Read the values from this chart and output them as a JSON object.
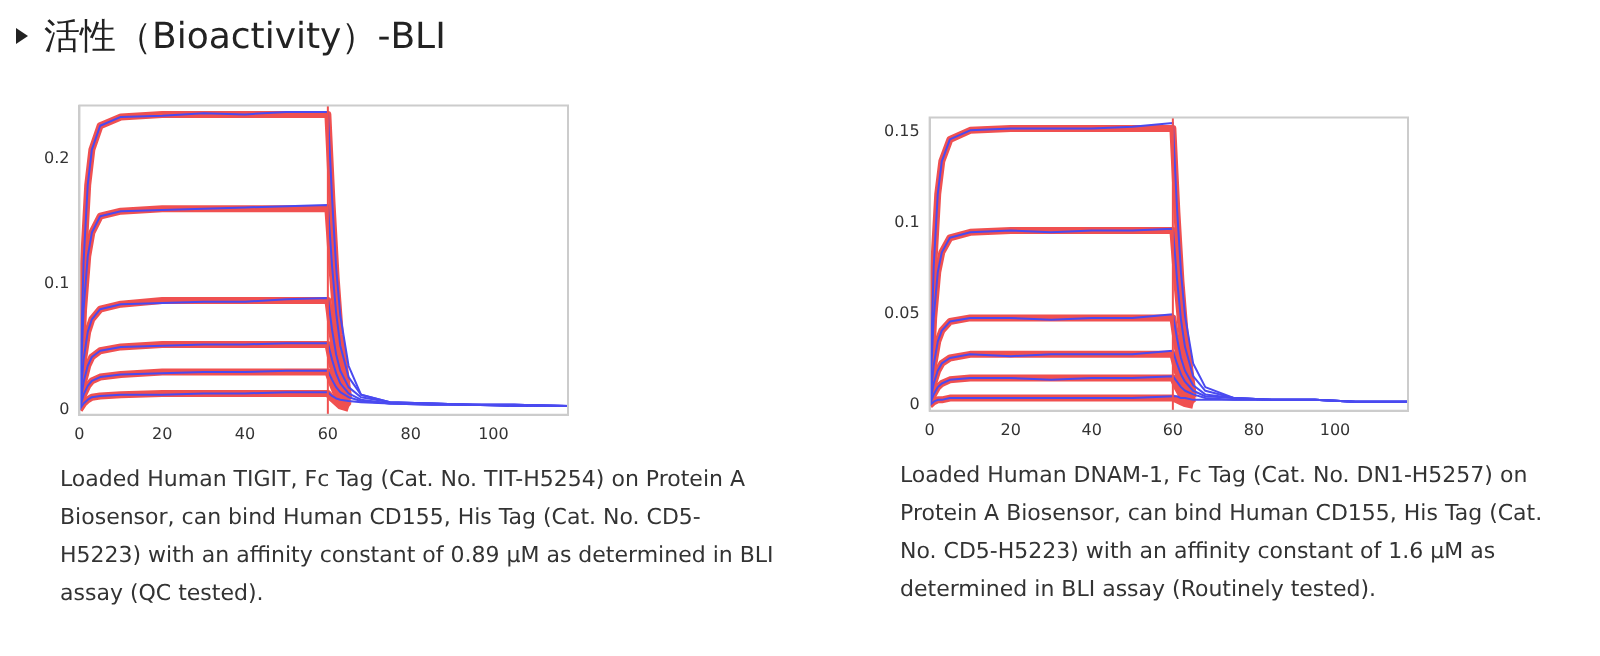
{
  "chart_data": [
    {
      "type": "line",
      "title": "活性（Bioactivity）-BLI",
      "xlim": [
        0,
        118
      ],
      "xticks": [
        0,
        20,
        40,
        60,
        80,
        100
      ],
      "ylim": [
        -0.004,
        0.242
      ],
      "yticks": [
        0,
        0.1,
        0.2
      ],
      "grid": false,
      "legend": false,
      "marker": "none",
      "line_style": "solid",
      "ref_lines": [
        {
          "axis": "x",
          "value": 60,
          "color": "#f05050"
        }
      ],
      "annotations": [
        "Loaded Human TIGIT, Fc Tag (Cat. No. TIT-H5254) on Protein A Biosensor, can bind Human CD155, His Tag (Cat. No. CD5-H5223) with an affinity constant of 0.89 μM as determined in BLI assay (QC tested)."
      ],
      "series": [
        {
          "color": "#4a4af0",
          "x": [
            0,
            1,
            2,
            3,
            5,
            10,
            20,
            30,
            40,
            50,
            60,
            61,
            62,
            63,
            65,
            68,
            75,
            85,
            95,
            105,
            118
          ],
          "values": [
            0,
            0.118,
            0.179,
            0.207,
            0.226,
            0.233,
            0.234,
            0.236,
            0.235,
            0.237,
            0.237,
            0.169,
            0.113,
            0.075,
            0.035,
            0.012,
            0.006,
            0.005,
            0.004,
            0.004,
            0.003
          ]
        },
        {
          "color": "#4a4af0",
          "x": [
            0,
            1,
            2,
            3,
            5,
            10,
            20,
            30,
            40,
            50,
            60,
            61,
            62,
            63,
            65,
            68,
            75,
            85,
            95,
            105,
            118
          ],
          "values": [
            0,
            0.08,
            0.122,
            0.141,
            0.154,
            0.158,
            0.159,
            0.16,
            0.161,
            0.162,
            0.163,
            0.115,
            0.077,
            0.051,
            0.026,
            0.012,
            0.006,
            0.005,
            0.004,
            0.004,
            0.003
          ]
        },
        {
          "color": "#4a4af0",
          "x": [
            0,
            1,
            2,
            3,
            5,
            10,
            20,
            30,
            40,
            50,
            60,
            61,
            62,
            63,
            65,
            68,
            75,
            85,
            95,
            105,
            118
          ],
          "values": [
            0,
            0.04,
            0.062,
            0.072,
            0.08,
            0.084,
            0.085,
            0.086,
            0.086,
            0.088,
            0.089,
            0.064,
            0.044,
            0.031,
            0.018,
            0.01,
            0.006,
            0.005,
            0.004,
            0.004,
            0.003
          ]
        },
        {
          "color": "#4a4af0",
          "x": [
            0,
            1,
            2,
            3,
            5,
            10,
            20,
            30,
            40,
            50,
            60,
            61,
            62,
            63,
            65,
            68,
            75,
            85,
            95,
            105,
            118
          ],
          "values": [
            0,
            0.022,
            0.035,
            0.042,
            0.047,
            0.05,
            0.051,
            0.052,
            0.052,
            0.053,
            0.053,
            0.04,
            0.029,
            0.021,
            0.013,
            0.008,
            0.005,
            0.005,
            0.004,
            0.004,
            0.003
          ]
        },
        {
          "color": "#4a4af0",
          "x": [
            0,
            1,
            2,
            3,
            5,
            10,
            20,
            30,
            40,
            50,
            60,
            61,
            62,
            63,
            65,
            68,
            75,
            85,
            95,
            105,
            118
          ],
          "values": [
            0,
            0.012,
            0.019,
            0.023,
            0.026,
            0.028,
            0.029,
            0.03,
            0.03,
            0.031,
            0.031,
            0.024,
            0.018,
            0.014,
            0.01,
            0.007,
            0.005,
            0.004,
            0.004,
            0.003,
            0.003
          ]
        },
        {
          "color": "#4a4af0",
          "x": [
            0,
            1,
            2,
            3,
            5,
            10,
            20,
            30,
            40,
            50,
            60,
            61,
            62,
            63,
            65,
            68,
            75,
            85,
            95,
            105,
            118
          ],
          "values": [
            0,
            0.005,
            0.008,
            0.01,
            0.011,
            0.012,
            0.012,
            0.013,
            0.013,
            0.014,
            0.014,
            0.011,
            0.009,
            0.008,
            0.007,
            0.006,
            0.005,
            0.004,
            0.004,
            0.003,
            0.003
          ]
        },
        {
          "color": "#f05050",
          "x": [
            0,
            1,
            2,
            3,
            5,
            10,
            20,
            30,
            40,
            50,
            60,
            61,
            62,
            63,
            65
          ],
          "values": [
            0,
            0.118,
            0.179,
            0.207,
            0.226,
            0.233,
            0.235,
            0.235,
            0.235,
            0.235,
            0.235,
            0.165,
            0.105,
            0.06,
            0.01
          ]
        },
        {
          "color": "#f05050",
          "x": [
            0,
            1,
            2,
            3,
            5,
            10,
            20,
            30,
            40,
            50,
            60,
            61,
            62,
            63,
            65
          ],
          "values": [
            0,
            0.08,
            0.122,
            0.141,
            0.154,
            0.158,
            0.16,
            0.16,
            0.16,
            0.16,
            0.16,
            0.112,
            0.072,
            0.041,
            0.008
          ]
        },
        {
          "color": "#f05050",
          "x": [
            0,
            1,
            2,
            3,
            5,
            10,
            20,
            30,
            40,
            50,
            60,
            61,
            62,
            63,
            65
          ],
          "values": [
            0,
            0.04,
            0.062,
            0.072,
            0.08,
            0.084,
            0.087,
            0.087,
            0.087,
            0.087,
            0.087,
            0.061,
            0.039,
            0.022,
            0.005
          ]
        },
        {
          "color": "#f05050",
          "x": [
            0,
            1,
            2,
            3,
            5,
            10,
            20,
            30,
            40,
            50,
            60,
            61,
            62,
            63,
            65
          ],
          "values": [
            0,
            0.022,
            0.035,
            0.042,
            0.047,
            0.05,
            0.052,
            0.052,
            0.052,
            0.052,
            0.052,
            0.036,
            0.023,
            0.013,
            0.003
          ]
        },
        {
          "color": "#f05050",
          "x": [
            0,
            1,
            2,
            3,
            5,
            10,
            20,
            30,
            40,
            50,
            60,
            61,
            62,
            63,
            65
          ],
          "values": [
            0,
            0.012,
            0.019,
            0.023,
            0.026,
            0.028,
            0.03,
            0.03,
            0.03,
            0.03,
            0.03,
            0.021,
            0.013,
            0.008,
            0.002
          ]
        },
        {
          "color": "#f05050",
          "x": [
            0,
            1,
            2,
            3,
            5,
            10,
            20,
            30,
            40,
            50,
            60,
            61,
            62,
            63,
            65
          ],
          "values": [
            0,
            0.005,
            0.008,
            0.01,
            0.011,
            0.012,
            0.013,
            0.013,
            0.013,
            0.013,
            0.013,
            0.009,
            0.006,
            0.003,
            0.001
          ]
        }
      ]
    },
    {
      "type": "line",
      "xlim": [
        0,
        118
      ],
      "xticks": [
        0,
        20,
        40,
        60,
        80,
        100
      ],
      "ylim": [
        -0.003,
        0.158
      ],
      "yticks": [
        0,
        0.05,
        0.1,
        0.15
      ],
      "grid": false,
      "legend": false,
      "marker": "none",
      "line_style": "solid",
      "ref_lines": [
        {
          "axis": "x",
          "value": 60,
          "color": "#f05050"
        }
      ],
      "annotations": [
        "Loaded Human DNAM-1, Fc Tag (Cat. No. DN1-H5257) on Protein A Biosensor, can bind Human CD155, His Tag (Cat. No. CD5-H5223) with an affinity constant of 1.6 μM as determined in BLI assay (Routinely tested)."
      ],
      "series": [
        {
          "color": "#4a4af0",
          "x": [
            0,
            1,
            2,
            3,
            5,
            10,
            20,
            30,
            40,
            50,
            60,
            61,
            62,
            63,
            65,
            68,
            75,
            85,
            95,
            105,
            118
          ],
          "values": [
            0,
            0.076,
            0.116,
            0.134,
            0.146,
            0.151,
            0.152,
            0.152,
            0.152,
            0.153,
            0.155,
            0.109,
            0.073,
            0.049,
            0.023,
            0.01,
            0.004,
            0.003,
            0.003,
            0.002,
            0.002
          ]
        },
        {
          "color": "#4a4af0",
          "x": [
            0,
            1,
            2,
            3,
            5,
            10,
            20,
            30,
            40,
            50,
            60,
            61,
            62,
            63,
            65,
            68,
            75,
            85,
            95,
            105,
            118
          ],
          "values": [
            0,
            0.048,
            0.073,
            0.084,
            0.092,
            0.095,
            0.096,
            0.095,
            0.096,
            0.096,
            0.097,
            0.07,
            0.047,
            0.032,
            0.016,
            0.008,
            0.004,
            0.003,
            0.003,
            0.002,
            0.002
          ]
        },
        {
          "color": "#4a4af0",
          "x": [
            0,
            1,
            2,
            3,
            5,
            10,
            20,
            30,
            40,
            50,
            60,
            61,
            62,
            63,
            65,
            68,
            75,
            85,
            95,
            105,
            118
          ],
          "values": [
            0,
            0.022,
            0.035,
            0.041,
            0.046,
            0.048,
            0.048,
            0.047,
            0.048,
            0.048,
            0.05,
            0.037,
            0.026,
            0.019,
            0.011,
            0.006,
            0.004,
            0.003,
            0.003,
            0.002,
            0.002
          ]
        },
        {
          "color": "#4a4af0",
          "x": [
            0,
            1,
            2,
            3,
            5,
            10,
            20,
            30,
            40,
            50,
            60,
            61,
            62,
            63,
            65,
            68,
            75,
            85,
            95,
            105,
            118
          ],
          "values": [
            0,
            0.012,
            0.019,
            0.023,
            0.026,
            0.028,
            0.027,
            0.028,
            0.028,
            0.028,
            0.03,
            0.023,
            0.017,
            0.013,
            0.008,
            0.005,
            0.004,
            0.003,
            0.003,
            0.002,
            0.002
          ]
        },
        {
          "color": "#4a4af0",
          "x": [
            0,
            1,
            2,
            3,
            5,
            10,
            20,
            30,
            40,
            50,
            60,
            61,
            62,
            63,
            65,
            68,
            75,
            85,
            95,
            105,
            118
          ],
          "values": [
            0,
            0.006,
            0.01,
            0.012,
            0.014,
            0.015,
            0.015,
            0.014,
            0.015,
            0.015,
            0.016,
            0.013,
            0.01,
            0.008,
            0.006,
            0.004,
            0.003,
            0.003,
            0.003,
            0.002,
            0.002
          ]
        },
        {
          "color": "#4a4af0",
          "x": [
            0,
            1,
            2,
            3,
            5,
            10,
            20,
            30,
            40,
            50,
            60,
            61,
            62,
            63,
            65,
            68,
            75,
            85,
            95,
            105,
            118
          ],
          "values": [
            0,
            0.002,
            0.003,
            0.003,
            0.004,
            0.004,
            0.004,
            0.004,
            0.004,
            0.004,
            0.005,
            0.005,
            0.004,
            0.004,
            0.003,
            0.003,
            0.003,
            0.003,
            0.003,
            0.002,
            0.002
          ]
        },
        {
          "color": "#f05050",
          "x": [
            0,
            1,
            2,
            3,
            5,
            10,
            20,
            30,
            40,
            50,
            60,
            61,
            62,
            63,
            65
          ],
          "values": [
            0,
            0.076,
            0.116,
            0.134,
            0.146,
            0.151,
            0.152,
            0.152,
            0.152,
            0.152,
            0.152,
            0.106,
            0.068,
            0.04,
            0.006
          ]
        },
        {
          "color": "#f05050",
          "x": [
            0,
            1,
            2,
            3,
            5,
            10,
            20,
            30,
            40,
            50,
            60,
            61,
            62,
            63,
            65
          ],
          "values": [
            0,
            0.048,
            0.073,
            0.084,
            0.092,
            0.095,
            0.096,
            0.096,
            0.096,
            0.096,
            0.096,
            0.067,
            0.043,
            0.025,
            0.004
          ]
        },
        {
          "color": "#f05050",
          "x": [
            0,
            1,
            2,
            3,
            5,
            10,
            20,
            30,
            40,
            50,
            60,
            61,
            62,
            63,
            65
          ],
          "values": [
            0,
            0.022,
            0.035,
            0.041,
            0.046,
            0.048,
            0.048,
            0.048,
            0.048,
            0.048,
            0.048,
            0.033,
            0.021,
            0.012,
            0.002
          ]
        },
        {
          "color": "#f05050",
          "x": [
            0,
            1,
            2,
            3,
            5,
            10,
            20,
            30,
            40,
            50,
            60,
            61,
            62,
            63,
            65
          ],
          "values": [
            0,
            0.012,
            0.019,
            0.023,
            0.026,
            0.028,
            0.028,
            0.028,
            0.028,
            0.028,
            0.028,
            0.019,
            0.012,
            0.007,
            0.001
          ]
        },
        {
          "color": "#f05050",
          "x": [
            0,
            1,
            2,
            3,
            5,
            10,
            20,
            30,
            40,
            50,
            60,
            61,
            62,
            63,
            65
          ],
          "values": [
            0,
            0.006,
            0.01,
            0.012,
            0.014,
            0.015,
            0.015,
            0.015,
            0.015,
            0.015,
            0.015,
            0.01,
            0.006,
            0.003,
            0.001
          ]
        },
        {
          "color": "#f05050",
          "x": [
            0,
            1,
            2,
            3,
            5,
            10,
            20,
            30,
            40,
            50,
            60,
            61,
            62,
            63,
            65
          ],
          "values": [
            0,
            0.002,
            0.003,
            0.003,
            0.004,
            0.004,
            0.004,
            0.004,
            0.004,
            0.004,
            0.004,
            0.003,
            0.002,
            0.001,
            0
          ]
        }
      ]
    }
  ]
}
